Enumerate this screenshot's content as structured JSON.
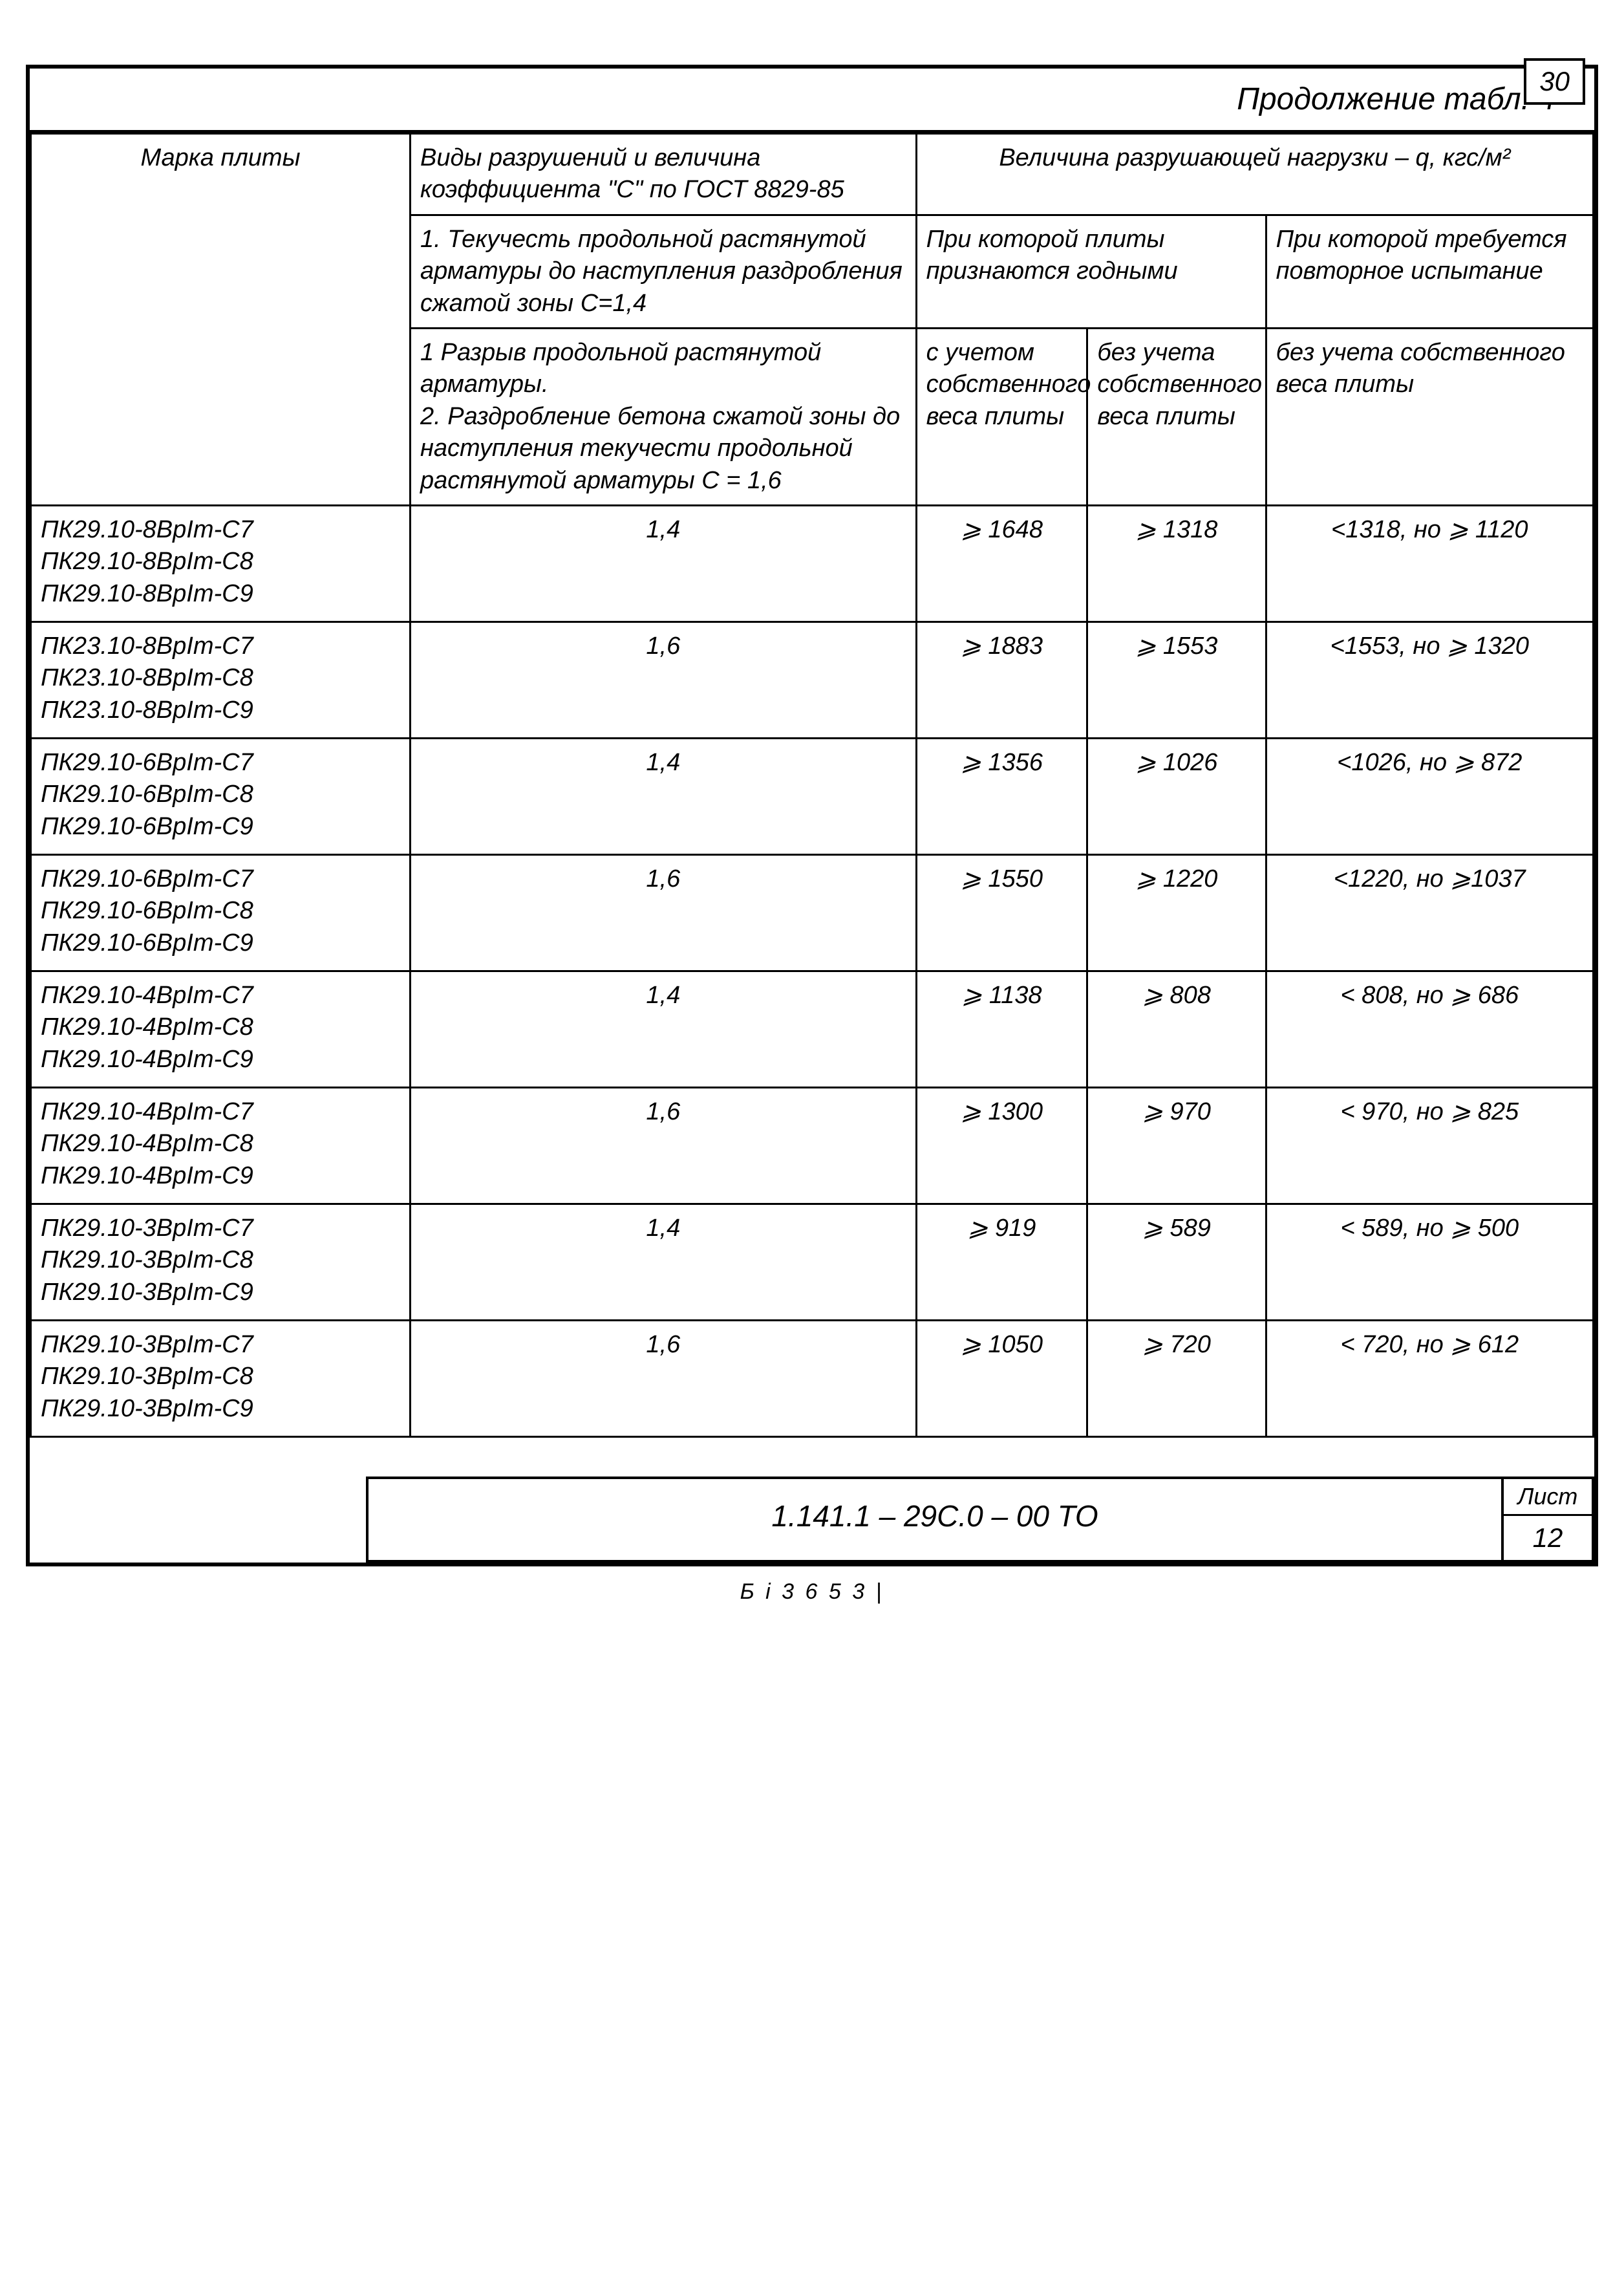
{
  "page_number": "30",
  "table_title": "Продолжение табл. 4",
  "headers": {
    "marka": "Марка плиты",
    "vid_header": "Виды разрушений и величина коэффициента \"С\" по ГОСТ 8829-85",
    "velichina_header": "Величина разрушающей нагрузки – q, кгс/м²",
    "vid_row1": "1. Текучесть продольной растянутой арматуры до наступления раздробления сжатой зоны С=1,4",
    "vid_row2": "1 Разрыв продольной растянутой арматуры.\n2. Раздробление бетона сжатой зоны до наступления текучести продольной растянутой арматуры  С = 1,6",
    "pri_godny": "При которой плиты признаются годными",
    "pri_povtor": "При которой требуется повторное испытание",
    "s_uchetom": "с учетом собственного веса плиты",
    "bez_ucheta": "без учета собственного веса плиты",
    "bez_ucheta2": "без учета собственного веса плиты"
  },
  "rows": [
    {
      "marka": "ПК29.10-8ВрIт-С7\nПК29.10-8ВрIт-С8\nПК29.10-8ВрIт-С9",
      "c": "1,4",
      "v1": "⩾ 1648",
      "v2": "⩾ 1318",
      "v3": "<1318, но ⩾ 1120"
    },
    {
      "marka": "ПК23.10-8ВрIт-С7\nПК23.10-8ВрIт-С8\nПК23.10-8ВрIт-С9",
      "c": "1,6",
      "v1": "⩾ 1883",
      "v2": "⩾ 1553",
      "v3": "<1553, но ⩾ 1320"
    },
    {
      "marka": "ПК29.10-6ВрIт-С7\nПК29.10-6ВрIт-С8\nПК29.10-6ВрIт-С9",
      "c": "1,4",
      "v1": "⩾ 1356",
      "v2": "⩾ 1026",
      "v3": "<1026, но ⩾ 872"
    },
    {
      "marka": "ПК29.10-6ВрIт-С7\nПК29.10-6ВрIт-С8\nПК29.10-6ВрIт-С9",
      "c": "1,6",
      "v1": "⩾ 1550",
      "v2": "⩾ 1220",
      "v3": "<1220, но ⩾1037"
    },
    {
      "marka": "ПК29.10-4ВрIт-С7\nПК29.10-4ВрIт-С8\nПК29.10-4ВрIт-С9",
      "c": "1,4",
      "v1": "⩾ 1138",
      "v2": "⩾ 808",
      "v3": "< 808, но ⩾ 686"
    },
    {
      "marka": "ПК29.10-4ВрIт-С7\nПК29.10-4ВрIт-С8\nПК29.10-4ВрIт-С9",
      "c": "1,6",
      "v1": "⩾ 1300",
      "v2": "⩾ 970",
      "v3": "< 970, но ⩾ 825"
    },
    {
      "marka": "ПК29.10-3ВрIт-С7\nПК29.10-3ВрIт-С8\nПК29.10-3ВрIт-С9",
      "c": "1,4",
      "v1": "⩾ 919",
      "v2": "⩾ 589",
      "v3": "< 589, но ⩾ 500"
    },
    {
      "marka": "ПК29.10-3ВрIт-С7\nПК29.10-3ВрIт-С8\nПК29.10-3ВрIт-С9",
      "c": "1,6",
      "v1": "⩾ 1050",
      "v2": "⩾ 720",
      "v3": "< 720, но ⩾ 612"
    }
  ],
  "footer": {
    "doc_code": "1.141.1 – 29С.0 – 00 ТО",
    "sheet_label": "Лист",
    "sheet_num": "12",
    "marks": "Б і 3 6 5    3 |"
  },
  "style": {
    "border_color": "#000000",
    "background": "#ffffff",
    "font_size_title": 48,
    "font_size_cell": 38,
    "font_size_page": 42
  }
}
